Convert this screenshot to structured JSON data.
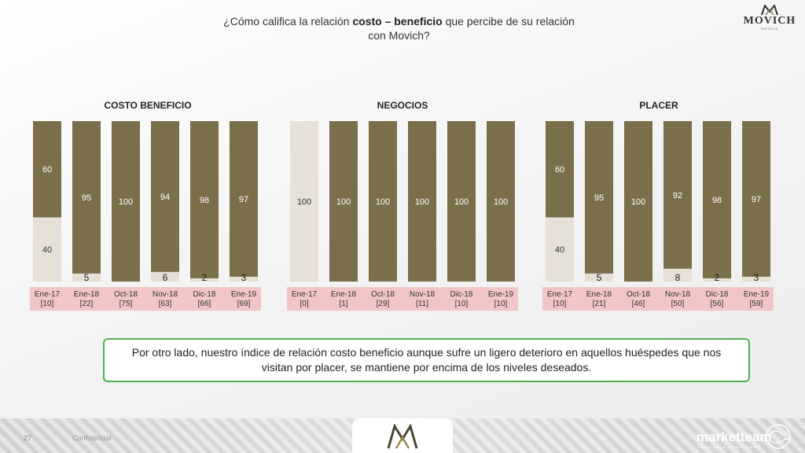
{
  "header": {
    "question_pre": "¿Cómo califica la relación ",
    "question_bold": "costo – beneficio",
    "question_post": " que percibe de su relación",
    "question_line2": "con Movich?"
  },
  "logo": {
    "name": "MOVICH",
    "sub": "HOTELS"
  },
  "colors": {
    "top_segment": "#7b6e4b",
    "bottom_segment": "#e6e0d6",
    "label_band": "#f2c6c6",
    "callout_border": "#4cb050"
  },
  "chart_data": [
    {
      "type": "bar",
      "stacked": true,
      "title": "COSTO BENEFICIO",
      "categories": [
        "Ene-17",
        "Ene-18",
        "Oct-18",
        "Nov-18",
        "Dic-18",
        "Ene-19"
      ],
      "bases": [
        "[10]",
        "[22]",
        "[75]",
        "[63]",
        "[66]",
        "[69]"
      ],
      "series": [
        {
          "values": [
            40,
            5,
            0,
            6,
            2,
            3
          ]
        },
        {
          "values": [
            60,
            95,
            100,
            94,
            98,
            97
          ]
        }
      ],
      "ylim": [
        0,
        100
      ]
    },
    {
      "type": "bar",
      "stacked": true,
      "title": "NEGOCIOS",
      "categories": [
        "Ene-17",
        "Ene-18",
        "Oct-18",
        "Nov-18",
        "Dic-18",
        "Ene-19"
      ],
      "bases": [
        "[0]",
        "[1]",
        "[29]",
        "[11]",
        "[10]",
        "[10]"
      ],
      "series": [
        {
          "values": [
            100,
            0,
            0,
            0,
            0,
            0
          ]
        },
        {
          "values": [
            0,
            100,
            100,
            100,
            100,
            100
          ]
        }
      ],
      "ylim": [
        0,
        100
      ]
    },
    {
      "type": "bar",
      "stacked": true,
      "title": "PLACER",
      "categories": [
        "Ene-17",
        "Ene-18",
        "Oct-18",
        "Nov-18",
        "Dic-18",
        "Ene-19"
      ],
      "bases": [
        "[10]",
        "[21]",
        "[46]",
        "[50]",
        "[56]",
        "[59]"
      ],
      "series": [
        {
          "values": [
            40,
            5,
            0,
            8,
            2,
            3
          ]
        },
        {
          "values": [
            60,
            95,
            100,
            92,
            98,
            97
          ]
        }
      ],
      "ylim": [
        0,
        100
      ]
    }
  ],
  "callout": {
    "text": "Por otro lado, nuestro índice de relación costo beneficio aunque sufre un ligero deterioro en aquellos huéspedes que nos visitan por placer, se mantiene por encima de los niveles deseados."
  },
  "footer": {
    "page": "27",
    "confidential": "Confidencial",
    "brand": "marketteam",
    "brand_sub": "CAPTURA DE CONOCIMIENTO"
  }
}
